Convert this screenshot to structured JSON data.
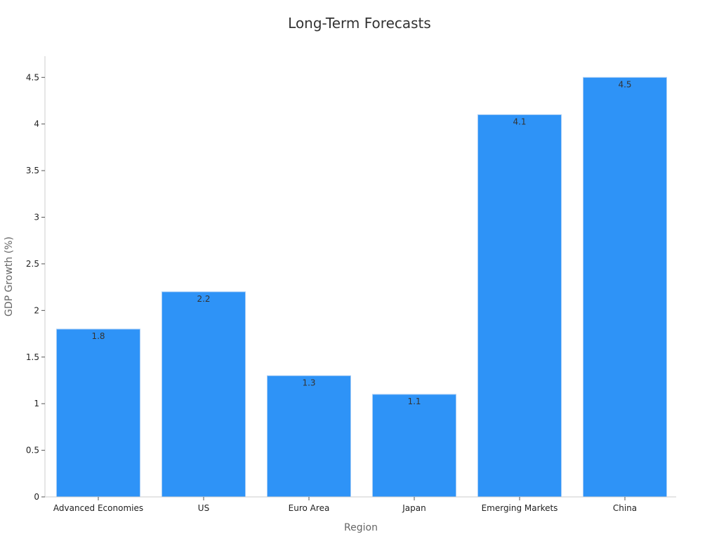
{
  "chart_data": {
    "type": "bar",
    "title": "Long-Term Forecasts",
    "xlabel": "Region",
    "ylabel": "GDP Growth (%)",
    "categories": [
      "Advanced Economies",
      "US",
      "Euro Area",
      "Japan",
      "Emerging Markets",
      "China"
    ],
    "values": [
      1.8,
      2.2,
      1.3,
      1.1,
      4.1,
      4.5
    ],
    "data_labels": [
      "1.8",
      "2.2",
      "1.3",
      "1.1",
      "4.1",
      "4.5"
    ],
    "ylim": [
      0,
      4.728
    ],
    "yticks": [
      0,
      0.5,
      1,
      1.5,
      2,
      2.5,
      3,
      3.5,
      4,
      4.5
    ],
    "ytick_labels": [
      "0",
      "0.5",
      "1",
      "1.5",
      "2",
      "2.5",
      "3",
      "3.5",
      "4",
      "4.5"
    ],
    "bar_color": "#2e93f7",
    "grid": false,
    "legend": "none"
  }
}
